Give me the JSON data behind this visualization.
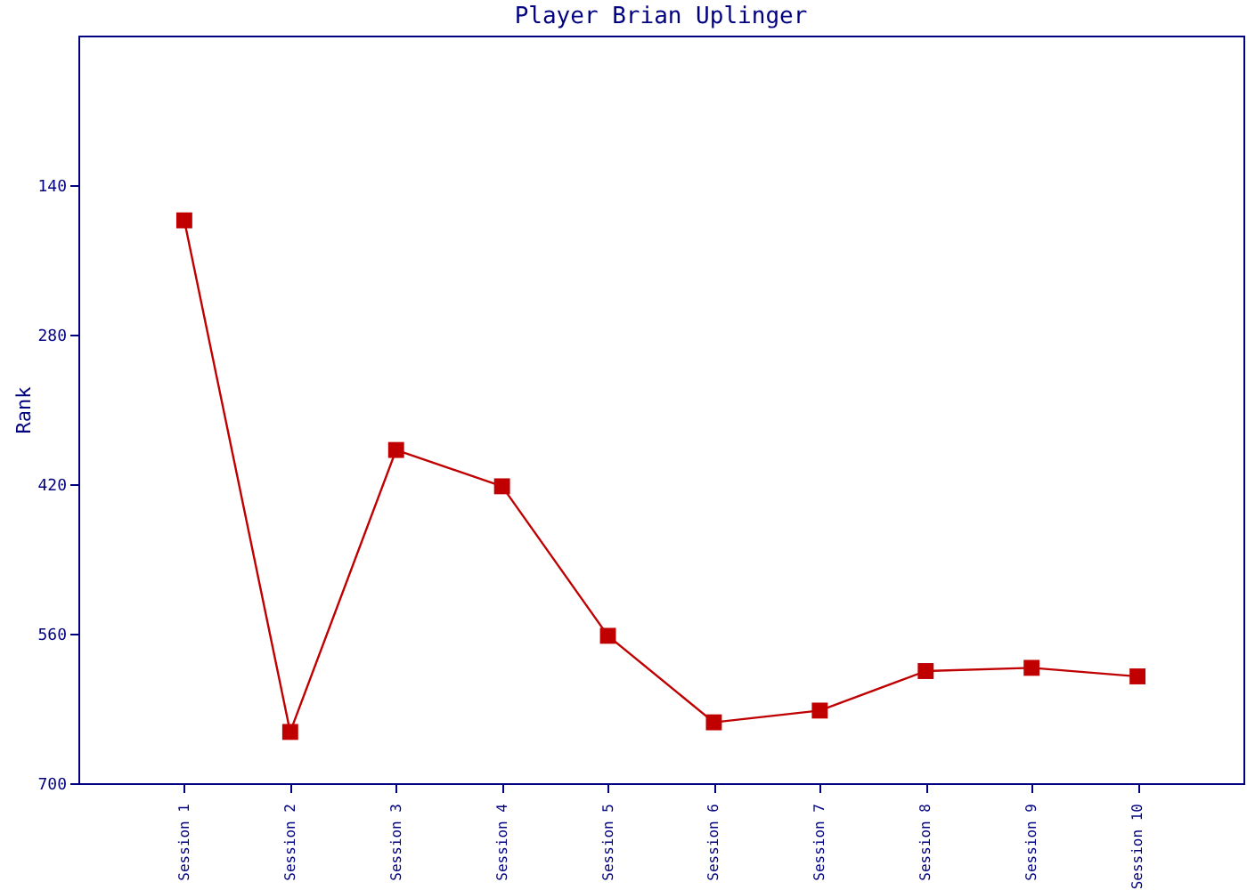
{
  "chart_data": {
    "type": "line",
    "title": "Player Brian Uplinger",
    "ylabel": "Rank",
    "categories": [
      "Session 1",
      "Session 2",
      "Session 3",
      "Session 4",
      "Session 5",
      "Session 6",
      "Session 7",
      "Session 8",
      "Session 9",
      "Session 10"
    ],
    "series": [
      {
        "color": "#c00000",
        "values": [
          173,
          652,
          388,
          422,
          562,
          643,
          632,
          595,
          592,
          600
        ]
      }
    ],
    "ylim": [
      700,
      0
    ],
    "yticks": [
      140,
      280,
      420,
      560,
      700
    ],
    "grid": false,
    "marker": "square",
    "line_style": "solid"
  }
}
